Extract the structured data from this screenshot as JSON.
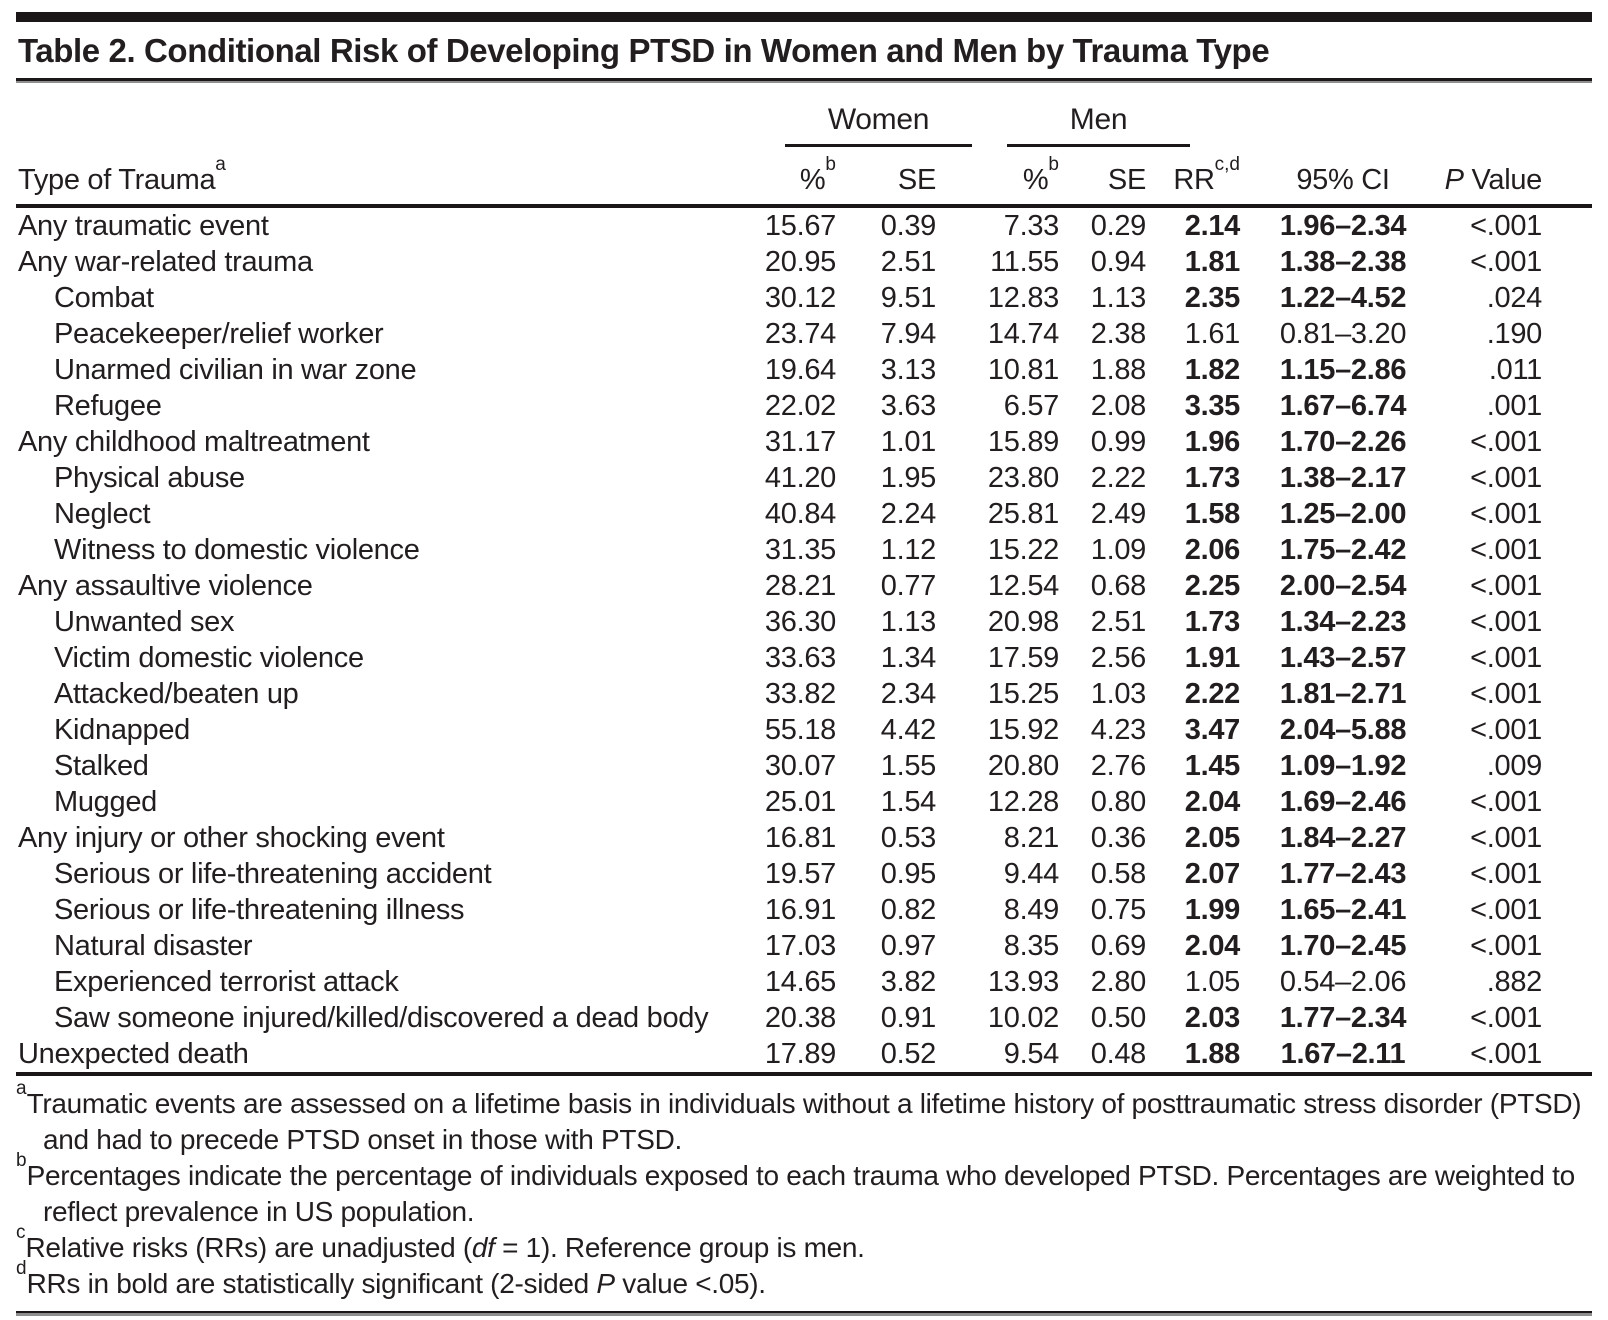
{
  "title": "Table 2. Conditional Risk of Developing PTSD in Women and Men by Trauma Type",
  "header": {
    "row_label": "Type of Trauma",
    "row_label_sup": "a",
    "group_women": "Women",
    "group_men": "Men",
    "pct": "%",
    "pct_sup": "b",
    "se": "SE",
    "rr": "RR",
    "rr_sup": "c,d",
    "ci": "95% CI",
    "p_italic": "P",
    "p_rest": " Value"
  },
  "rows": [
    {
      "label": "Any traumatic event",
      "indent": false,
      "women_pct": "15.67",
      "women_se": "0.39",
      "men_pct": "7.33",
      "men_se": "0.29",
      "rr": "2.14",
      "ci": "1.96–2.34",
      "p": "<.001",
      "significant": true
    },
    {
      "label": "Any war-related trauma",
      "indent": false,
      "women_pct": "20.95",
      "women_se": "2.51",
      "men_pct": "11.55",
      "men_se": "0.94",
      "rr": "1.81",
      "ci": "1.38–2.38",
      "p": "<.001",
      "significant": true
    },
    {
      "label": "Combat",
      "indent": true,
      "women_pct": "30.12",
      "women_se": "9.51",
      "men_pct": "12.83",
      "men_se": "1.13",
      "rr": "2.35",
      "ci": "1.22–4.52",
      "p": ".024",
      "significant": true
    },
    {
      "label": "Peacekeeper/relief worker",
      "indent": true,
      "women_pct": "23.74",
      "women_se": "7.94",
      "men_pct": "14.74",
      "men_se": "2.38",
      "rr": "1.61",
      "ci": "0.81–3.20",
      "p": ".190",
      "significant": false
    },
    {
      "label": "Unarmed civilian in war zone",
      "indent": true,
      "women_pct": "19.64",
      "women_se": "3.13",
      "men_pct": "10.81",
      "men_se": "1.88",
      "rr": "1.82",
      "ci": "1.15–2.86",
      "p": ".011",
      "significant": true
    },
    {
      "label": "Refugee",
      "indent": true,
      "women_pct": "22.02",
      "women_se": "3.63",
      "men_pct": "6.57",
      "men_se": "2.08",
      "rr": "3.35",
      "ci": "1.67–6.74",
      "p": ".001",
      "significant": true
    },
    {
      "label": "Any childhood maltreatment",
      "indent": false,
      "women_pct": "31.17",
      "women_se": "1.01",
      "men_pct": "15.89",
      "men_se": "0.99",
      "rr": "1.96",
      "ci": "1.70–2.26",
      "p": "<.001",
      "significant": true
    },
    {
      "label": "Physical abuse",
      "indent": true,
      "women_pct": "41.20",
      "women_se": "1.95",
      "men_pct": "23.80",
      "men_se": "2.22",
      "rr": "1.73",
      "ci": "1.38–2.17",
      "p": "<.001",
      "significant": true
    },
    {
      "label": "Neglect",
      "indent": true,
      "women_pct": "40.84",
      "women_se": "2.24",
      "men_pct": "25.81",
      "men_se": "2.49",
      "rr": "1.58",
      "ci": "1.25–2.00",
      "p": "<.001",
      "significant": true
    },
    {
      "label": "Witness to domestic violence",
      "indent": true,
      "women_pct": "31.35",
      "women_se": "1.12",
      "men_pct": "15.22",
      "men_se": "1.09",
      "rr": "2.06",
      "ci": "1.75–2.42",
      "p": "<.001",
      "significant": true
    },
    {
      "label": "Any assaultive violence",
      "indent": false,
      "women_pct": "28.21",
      "women_se": "0.77",
      "men_pct": "12.54",
      "men_se": "0.68",
      "rr": "2.25",
      "ci": "2.00–2.54",
      "p": "<.001",
      "significant": true
    },
    {
      "label": "Unwanted sex",
      "indent": true,
      "women_pct": "36.30",
      "women_se": "1.13",
      "men_pct": "20.98",
      "men_se": "2.51",
      "rr": "1.73",
      "ci": "1.34–2.23",
      "p": "<.001",
      "significant": true
    },
    {
      "label": "Victim domestic violence",
      "indent": true,
      "women_pct": "33.63",
      "women_se": "1.34",
      "men_pct": "17.59",
      "men_se": "2.56",
      "rr": "1.91",
      "ci": "1.43–2.57",
      "p": "<.001",
      "significant": true
    },
    {
      "label": "Attacked/beaten up",
      "indent": true,
      "women_pct": "33.82",
      "women_se": "2.34",
      "men_pct": "15.25",
      "men_se": "1.03",
      "rr": "2.22",
      "ci": "1.81–2.71",
      "p": "<.001",
      "significant": true
    },
    {
      "label": "Kidnapped",
      "indent": true,
      "women_pct": "55.18",
      "women_se": "4.42",
      "men_pct": "15.92",
      "men_se": "4.23",
      "rr": "3.47",
      "ci": "2.04–5.88",
      "p": "<.001",
      "significant": true
    },
    {
      "label": "Stalked",
      "indent": true,
      "women_pct": "30.07",
      "women_se": "1.55",
      "men_pct": "20.80",
      "men_se": "2.76",
      "rr": "1.45",
      "ci": "1.09–1.92",
      "p": ".009",
      "significant": true
    },
    {
      "label": "Mugged",
      "indent": true,
      "women_pct": "25.01",
      "women_se": "1.54",
      "men_pct": "12.28",
      "men_se": "0.80",
      "rr": "2.04",
      "ci": "1.69–2.46",
      "p": "<.001",
      "significant": true
    },
    {
      "label": "Any injury or other shocking event",
      "indent": false,
      "women_pct": "16.81",
      "women_se": "0.53",
      "men_pct": "8.21",
      "men_se": "0.36",
      "rr": "2.05",
      "ci": "1.84–2.27",
      "p": "<.001",
      "significant": true
    },
    {
      "label": "Serious or life-threatening accident",
      "indent": true,
      "women_pct": "19.57",
      "women_se": "0.95",
      "men_pct": "9.44",
      "men_se": "0.58",
      "rr": "2.07",
      "ci": "1.77–2.43",
      "p": "<.001",
      "significant": true
    },
    {
      "label": "Serious or life-threatening illness",
      "indent": true,
      "women_pct": "16.91",
      "women_se": "0.82",
      "men_pct": "8.49",
      "men_se": "0.75",
      "rr": "1.99",
      "ci": "1.65–2.41",
      "p": "<.001",
      "significant": true
    },
    {
      "label": "Natural disaster",
      "indent": true,
      "women_pct": "17.03",
      "women_se": "0.97",
      "men_pct": "8.35",
      "men_se": "0.69",
      "rr": "2.04",
      "ci": "1.70–2.45",
      "p": "<.001",
      "significant": true
    },
    {
      "label": "Experienced terrorist attack",
      "indent": true,
      "women_pct": "14.65",
      "women_se": "3.82",
      "men_pct": "13.93",
      "men_se": "2.80",
      "rr": "1.05",
      "ci": "0.54–2.06",
      "p": ".882",
      "significant": false
    },
    {
      "label": "Saw someone injured/killed/discovered a dead body",
      "indent": true,
      "women_pct": "20.38",
      "women_se": "0.91",
      "men_pct": "10.02",
      "men_se": "0.50",
      "rr": "2.03",
      "ci": "1.77–2.34",
      "p": "<.001",
      "significant": true
    },
    {
      "label": "Unexpected death",
      "indent": false,
      "women_pct": "17.89",
      "women_se": "0.52",
      "men_pct": "9.54",
      "men_se": "0.48",
      "rr": "1.88",
      "ci": "1.67–2.11",
      "p": "<.001",
      "significant": true
    }
  ],
  "footnotes": [
    {
      "sup": "a",
      "text": "Traumatic events are assessed on a lifetime basis in individuals without a lifetime history of posttraumatic stress disorder (PTSD) and had to precede PTSD onset in those with PTSD."
    },
    {
      "sup": "b",
      "text": "Percentages indicate the percentage of individuals exposed to each trauma who developed PTSD. Percentages are weighted to reflect prevalence in US population."
    },
    {
      "sup": "c",
      "pre": "Relative risks (RRs) are unadjusted (",
      "italic": "df",
      "post": " = 1). Reference group is men."
    },
    {
      "sup": "d",
      "pre": "RRs in bold are statistically significant (2-sided ",
      "italic": "P",
      "post": " value <.05)."
    }
  ]
}
